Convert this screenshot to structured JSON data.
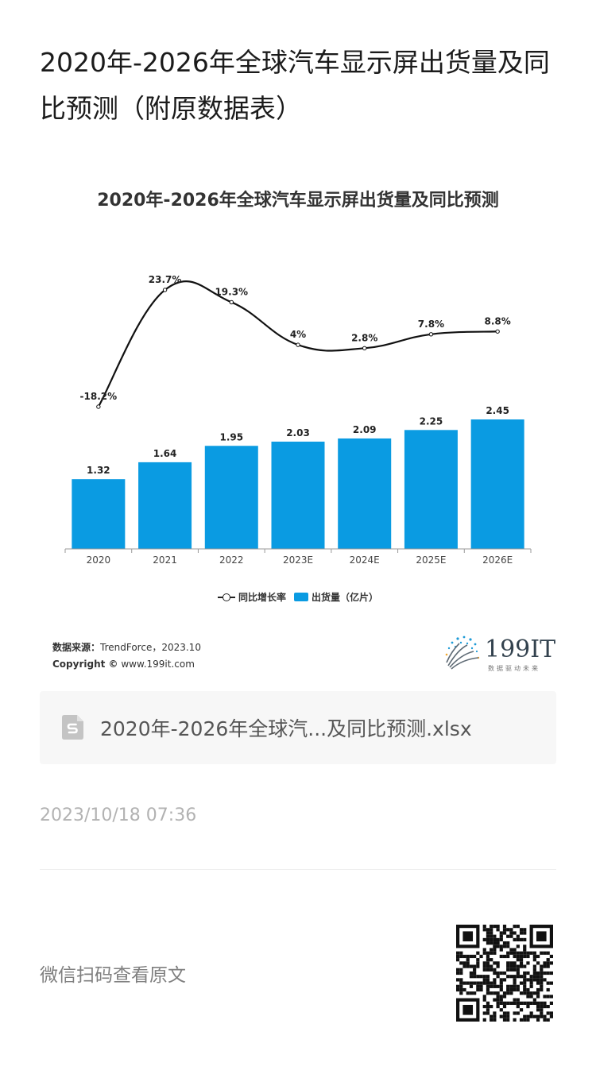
{
  "article": {
    "title": "2020年-2026年全球汽车显示屏出货量及同比预测（附原数据表）",
    "timestamp": "2023/10/18 07:36",
    "read_original": "微信扫码查看原文"
  },
  "attachment": {
    "file_name": "2020年-2026年全球汽...及同比预测.xlsx",
    "icon": "spreadsheet-file-icon"
  },
  "chart_data": {
    "type": "bar",
    "title": "2020年-2026年全球汽车显示屏出货量及同比预测",
    "categories": [
      "2020",
      "2021",
      "2022",
      "2023E",
      "2024E",
      "2025E",
      "2026E"
    ],
    "series": [
      {
        "name": "出货量（亿片）",
        "type": "bar",
        "values": [
          1.32,
          1.64,
          1.95,
          2.03,
          2.09,
          2.25,
          2.45
        ],
        "labels": [
          "1.32",
          "1.64",
          "1.95",
          "2.03",
          "2.09",
          "2.25",
          "2.45"
        ],
        "color": "#0a9be2"
      },
      {
        "name": "同比增长率",
        "type": "line",
        "values": [
          -18.2,
          23.7,
          19.3,
          4,
          2.8,
          7.8,
          8.8
        ],
        "labels": [
          "-18.2%",
          "23.7%",
          "19.3%",
          "4%",
          "2.8%",
          "7.8%",
          "8.8%"
        ],
        "color": "#111111",
        "smooth": true
      }
    ],
    "legend": [
      "同比增长率",
      "出货量（亿片）"
    ],
    "legend_position": "bottom"
  },
  "chart_footer": {
    "source_label": "数据来源：",
    "source_value": "TrendForce，2023.10",
    "copyright_label": "Copyright ©",
    "copyright_value": " www.199it.com"
  },
  "logo": {
    "text": "199IT",
    "subtitle": "数据驱动未来"
  }
}
